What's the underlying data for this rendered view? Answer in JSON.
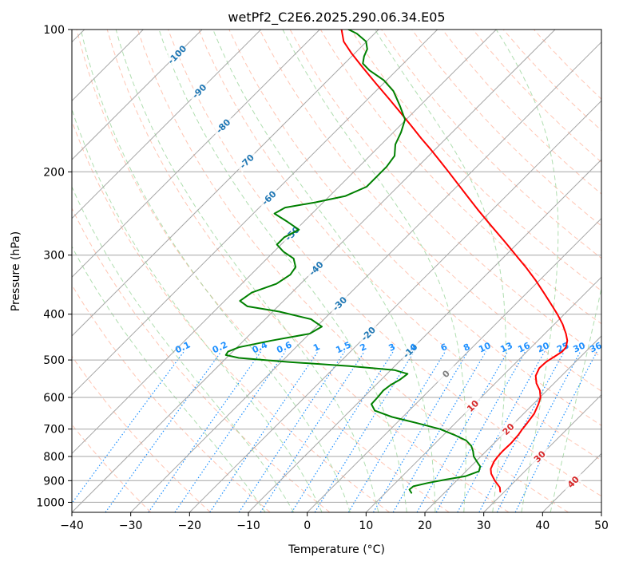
{
  "chart_data": {
    "type": "line",
    "title": "wetPf2_C2E6.2025.290.06.34.E05",
    "xlabel": "Temperature (°C)",
    "ylabel": "Pressure (hPa)",
    "xlim": [
      -40,
      50
    ],
    "ylim": [
      1050,
      100
    ],
    "y_scale": "log",
    "x_ticks": [
      {
        "value": -40,
        "label": "−40"
      },
      {
        "value": -30,
        "label": "−30"
      },
      {
        "value": -20,
        "label": "−20"
      },
      {
        "value": -10,
        "label": "−10"
      },
      {
        "value": 0,
        "label": "0"
      },
      {
        "value": 10,
        "label": "10"
      },
      {
        "value": 20,
        "label": "20"
      },
      {
        "value": 30,
        "label": "30"
      },
      {
        "value": 40,
        "label": "40"
      },
      {
        "value": 50,
        "label": "50"
      }
    ],
    "y_ticks": [
      {
        "value": 100,
        "label": "100"
      },
      {
        "value": 200,
        "label": "200"
      },
      {
        "value": 300,
        "label": "300"
      },
      {
        "value": 400,
        "label": "400"
      },
      {
        "value": 500,
        "label": "500"
      },
      {
        "value": 600,
        "label": "600"
      },
      {
        "value": 700,
        "label": "700"
      },
      {
        "value": 800,
        "label": "800"
      },
      {
        "value": 900,
        "label": "900"
      },
      {
        "value": 1000,
        "label": "1000"
      }
    ],
    "skew_degrees": 45,
    "isotherms": [
      -100,
      -90,
      -80,
      -70,
      -60,
      -50,
      -40,
      -30,
      -20,
      -10,
      0,
      10,
      20,
      30,
      40
    ],
    "isotherm_labels": [
      {
        "value": -100,
        "text": "-100",
        "p": 113
      },
      {
        "value": -90,
        "text": "-90",
        "p": 135
      },
      {
        "value": -80,
        "text": "-80",
        "p": 160
      },
      {
        "value": -70,
        "text": "-70",
        "p": 190
      },
      {
        "value": -60,
        "text": "-60",
        "p": 227
      },
      {
        "value": -50,
        "text": "-50",
        "p": 270
      },
      {
        "value": -40,
        "text": "-40",
        "p": 320
      },
      {
        "value": -30,
        "text": "-30",
        "p": 380
      },
      {
        "value": -20,
        "text": "-20",
        "p": 440
      },
      {
        "value": -10,
        "text": "-10",
        "p": 478
      },
      {
        "value": 0,
        "text": "0",
        "p": 535
      },
      {
        "value": 10,
        "text": "10",
        "p": 625
      },
      {
        "value": 20,
        "text": "20",
        "p": 700
      },
      {
        "value": 30,
        "text": "30",
        "p": 800
      },
      {
        "value": 40,
        "text": "40",
        "p": 905
      }
    ],
    "dry_adiabats": [
      -30,
      -20,
      -10,
      0,
      10,
      20,
      30,
      40,
      50,
      60,
      70,
      80,
      90,
      100,
      110,
      120,
      130,
      140,
      150,
      160,
      170
    ],
    "moist_adiabats": [
      -10,
      -5,
      0,
      5,
      10,
      15,
      20,
      25,
      30,
      35,
      40
    ],
    "mixing_ratio_lines": [
      {
        "w": 0.1,
        "text": "0.1"
      },
      {
        "w": 0.2,
        "text": "0.2"
      },
      {
        "w": 0.4,
        "text": "0.4"
      },
      {
        "w": 0.6,
        "text": "0.6"
      },
      {
        "w": 1,
        "text": "1"
      },
      {
        "w": 1.5,
        "text": "1.5"
      },
      {
        "w": 2,
        "text": "2"
      },
      {
        "w": 3,
        "text": "3"
      },
      {
        "w": 4,
        "text": "4"
      },
      {
        "w": 6,
        "text": "6"
      },
      {
        "w": 8,
        "text": "8"
      },
      {
        "w": 10,
        "text": "10"
      },
      {
        "w": 13,
        "text": "13"
      },
      {
        "w": 16,
        "text": "16"
      },
      {
        "w": 20,
        "text": "20"
      },
      {
        "w": 25,
        "text": "25"
      },
      {
        "w": 30,
        "text": "30"
      },
      {
        "w": 36,
        "text": "36"
      }
    ],
    "mixing_label_pressure": 480,
    "series": [
      {
        "name": "Temperature",
        "color": "#ff0000",
        "points": [
          [
            950,
            29.3
          ],
          [
            930,
            28.5
          ],
          [
            900,
            26.5
          ],
          [
            870,
            24.7
          ],
          [
            850,
            23.8
          ],
          [
            820,
            23.1
          ],
          [
            800,
            22.9
          ],
          [
            780,
            22.8
          ],
          [
            750,
            22.9
          ],
          [
            720,
            22.7
          ],
          [
            700,
            22.4
          ],
          [
            680,
            22.2
          ],
          [
            650,
            21.8
          ],
          [
            620,
            20.9
          ],
          [
            600,
            20.1
          ],
          [
            580,
            18.8
          ],
          [
            560,
            17.0
          ],
          [
            540,
            15.6
          ],
          [
            520,
            14.9
          ],
          [
            505,
            15.0
          ],
          [
            490,
            15.6
          ],
          [
            480,
            16.0
          ],
          [
            470,
            15.9
          ],
          [
            455,
            15.0
          ],
          [
            440,
            13.6
          ],
          [
            420,
            11.4
          ],
          [
            400,
            8.8
          ],
          [
            380,
            5.9
          ],
          [
            360,
            2.8
          ],
          [
            340,
            -0.5
          ],
          [
            320,
            -4.2
          ],
          [
            300,
            -8.3
          ],
          [
            280,
            -12.7
          ],
          [
            260,
            -17.5
          ],
          [
            240,
            -22.6
          ],
          [
            220,
            -28.0
          ],
          [
            200,
            -33.9
          ],
          [
            190,
            -37.1
          ],
          [
            180,
            -40.5
          ],
          [
            170,
            -44.2
          ],
          [
            160,
            -48.0
          ],
          [
            150,
            -52.1
          ],
          [
            140,
            -56.5
          ],
          [
            130,
            -61.3
          ],
          [
            120,
            -66.4
          ],
          [
            112,
            -70.7
          ],
          [
            106,
            -73.9
          ],
          [
            100,
            -76.3
          ]
        ]
      },
      {
        "name": "Dewpoint",
        "color": "#008000",
        "points": [
          [
            955,
            14.4
          ],
          [
            940,
            13.5
          ],
          [
            925,
            13.6
          ],
          [
            910,
            15.5
          ],
          [
            895,
            18.0
          ],
          [
            880,
            20.8
          ],
          [
            860,
            22.2
          ],
          [
            840,
            21.6
          ],
          [
            820,
            20.2
          ],
          [
            800,
            18.8
          ],
          [
            780,
            17.8
          ],
          [
            760,
            16.6
          ],
          [
            740,
            14.8
          ],
          [
            720,
            11.8
          ],
          [
            700,
            8.4
          ],
          [
            680,
            3.5
          ],
          [
            660,
            -1.8
          ],
          [
            640,
            -5.8
          ],
          [
            620,
            -7.5
          ],
          [
            600,
            -7.6
          ],
          [
            580,
            -7.8
          ],
          [
            565,
            -7.5
          ],
          [
            550,
            -6.8
          ],
          [
            535,
            -6.5
          ],
          [
            525,
            -9.4
          ],
          [
            515,
            -17.7
          ],
          [
            505,
            -28.5
          ],
          [
            495,
            -37.9
          ],
          [
            488,
            -40.6
          ],
          [
            480,
            -40.8
          ],
          [
            470,
            -39.7
          ],
          [
            455,
            -35.3
          ],
          [
            440,
            -30.0
          ],
          [
            425,
            -29.1
          ],
          [
            410,
            -32.2
          ],
          [
            395,
            -38.9
          ],
          [
            385,
            -45.2
          ],
          [
            375,
            -47.4
          ],
          [
            360,
            -46.8
          ],
          [
            345,
            -44.1
          ],
          [
            330,
            -43.3
          ],
          [
            318,
            -43.7
          ],
          [
            305,
            -45.5
          ],
          [
            295,
            -48.4
          ],
          [
            285,
            -50.7
          ],
          [
            275,
            -50.7
          ],
          [
            265,
            -49.5
          ],
          [
            255,
            -52.8
          ],
          [
            245,
            -56.4
          ],
          [
            238,
            -55.6
          ],
          [
            232,
            -51.3
          ],
          [
            225,
            -47.3
          ],
          [
            215,
            -45.3
          ],
          [
            205,
            -45.3
          ],
          [
            195,
            -45.3
          ],
          [
            185,
            -45.8
          ],
          [
            175,
            -47.6
          ],
          [
            165,
            -48.7
          ],
          [
            155,
            -50.2
          ],
          [
            145,
            -53.4
          ],
          [
            135,
            -57.0
          ],
          [
            128,
            -60.5
          ],
          [
            122,
            -64.6
          ],
          [
            118,
            -66.9
          ],
          [
            114,
            -67.9
          ],
          [
            110,
            -68.6
          ],
          [
            106,
            -70.1
          ],
          [
            102,
            -73.0
          ],
          [
            100,
            -75.1
          ]
        ]
      }
    ],
    "colors": {
      "isotherm_label": "#1f77b4",
      "isotherm_label_warm": "#d62728",
      "isotherm_label_zero": "#7f7f7f",
      "mixing_ratio": "#1e90ff",
      "dry_adiabat": "#ff9e80",
      "moist_adiabat": "#8fd08f",
      "grid": "#a6a6a6",
      "frame": "#000000"
    }
  }
}
